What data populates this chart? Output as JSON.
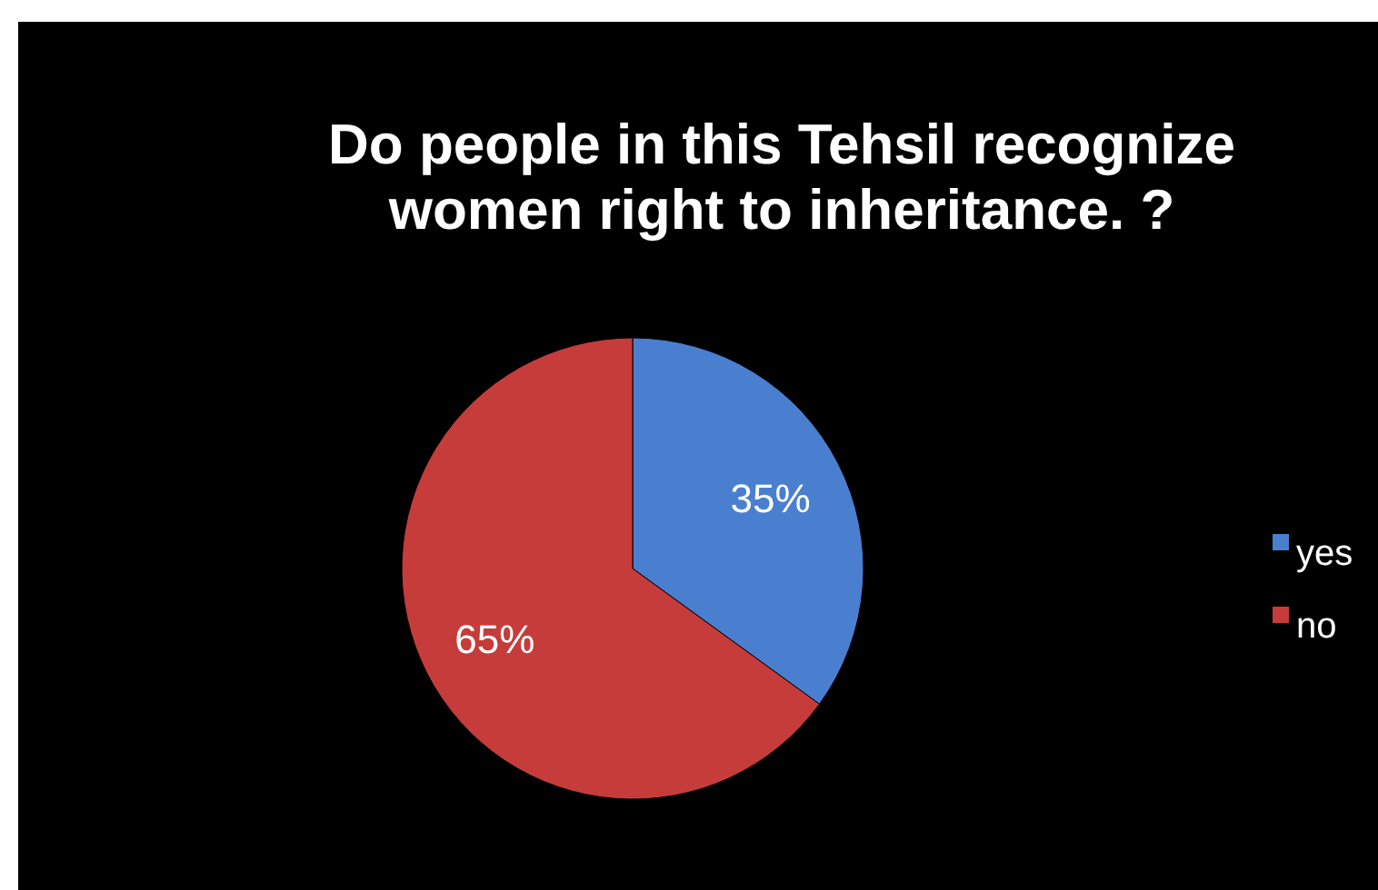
{
  "chart_data": {
    "type": "pie",
    "title": "Do people in this Tehsil recognize women right to inheritance. ?",
    "categories": [
      "yes",
      "no"
    ],
    "values": [
      35,
      65
    ],
    "colors": [
      "#4a7fd0",
      "#c63c3a"
    ],
    "value_labels": [
      "35%",
      "65%"
    ],
    "legend": "right"
  }
}
